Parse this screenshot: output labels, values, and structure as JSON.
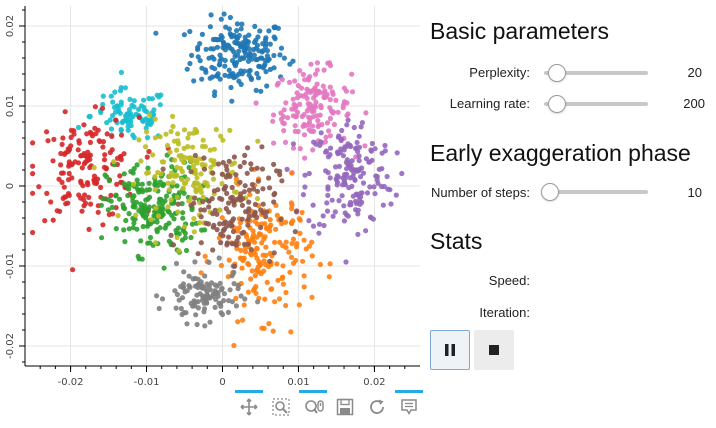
{
  "chart_data": {
    "type": "scatter",
    "title": "",
    "xlabel": "",
    "ylabel": "",
    "xlim": [
      -0.026,
      0.026
    ],
    "ylim": [
      -0.0225,
      0.0225
    ],
    "x_ticks": [
      {
        "value": -0.02,
        "label": "-0.02"
      },
      {
        "value": -0.01,
        "label": "-0.01"
      },
      {
        "value": 0,
        "label": "0"
      },
      {
        "value": 0.01,
        "label": "0.01"
      },
      {
        "value": 0.02,
        "label": "0.02"
      }
    ],
    "y_ticks": [
      {
        "value": 0.02,
        "label": "0.02"
      },
      {
        "value": 0.01,
        "label": "0.01"
      },
      {
        "value": 0,
        "label": "0"
      },
      {
        "value": -0.01,
        "label": "-0.01"
      },
      {
        "value": -0.02,
        "label": "-0.02"
      }
    ],
    "grid": true,
    "legend": "none",
    "series": [
      {
        "color": "#1f77b4",
        "center": [
          0.0022,
          0.0165
        ],
        "spread": [
          0.0042,
          0.003
        ],
        "count": 190
      },
      {
        "color": "#e377c2",
        "center": [
          0.0118,
          0.0098
        ],
        "spread": [
          0.0034,
          0.0032
        ],
        "count": 150
      },
      {
        "color": "#17becf",
        "center": [
          -0.0122,
          0.0088
        ],
        "spread": [
          0.0034,
          0.0022
        ],
        "count": 90
      },
      {
        "color": "#d62728",
        "center": [
          -0.0178,
          0.0022
        ],
        "spread": [
          0.0045,
          0.0042
        ],
        "count": 150
      },
      {
        "color": "#9467bd",
        "center": [
          0.0168,
          0.0012
        ],
        "spread": [
          0.0038,
          0.005
        ],
        "count": 170
      },
      {
        "color": "#2ca02c",
        "center": [
          -0.0092,
          -0.0028
        ],
        "spread": [
          0.004,
          0.0038
        ],
        "count": 200
      },
      {
        "color": "#bcbd22",
        "center": [
          -0.0042,
          0.0018
        ],
        "spread": [
          0.0045,
          0.0042
        ],
        "count": 150
      },
      {
        "color": "#ff7f0e",
        "center": [
          0.0055,
          -0.0085
        ],
        "spread": [
          0.0042,
          0.0052
        ],
        "count": 180
      },
      {
        "color": "#7f7f7f",
        "center": [
          -0.0025,
          -0.0138
        ],
        "spread": [
          0.0032,
          0.0022
        ],
        "count": 110
      },
      {
        "color": "#8c564b",
        "center": [
          0.0012,
          -0.0022
        ],
        "spread": [
          0.004,
          0.0045
        ],
        "count": 150
      }
    ]
  },
  "toolbar": {
    "tools": [
      {
        "icon": "pan-icon",
        "active": true
      },
      {
        "icon": "box-zoom-icon",
        "active": false
      },
      {
        "icon": "wheel-zoom-icon",
        "active": true
      },
      {
        "icon": "save-icon",
        "active": false
      },
      {
        "icon": "reset-icon",
        "active": false
      },
      {
        "icon": "hover-icon",
        "active": true
      }
    ]
  },
  "panel": {
    "basic_title": "Basic parameters",
    "perplexity": {
      "label": "Perplexity:",
      "value": "20",
      "slider_fraction": 0.12
    },
    "learning_rate": {
      "label": "Learning rate:",
      "value": "200",
      "slider_fraction": 0.12
    },
    "early_title": "Early exaggeration phase",
    "steps": {
      "label": "Number of steps:",
      "value": "10",
      "slider_fraction": 0.0
    },
    "stats_title": "Stats",
    "speed_label": "Speed:",
    "iteration_label": "Iteration:"
  },
  "controls": {
    "pause_icon": "pause-icon",
    "stop_icon": "stop-icon"
  }
}
